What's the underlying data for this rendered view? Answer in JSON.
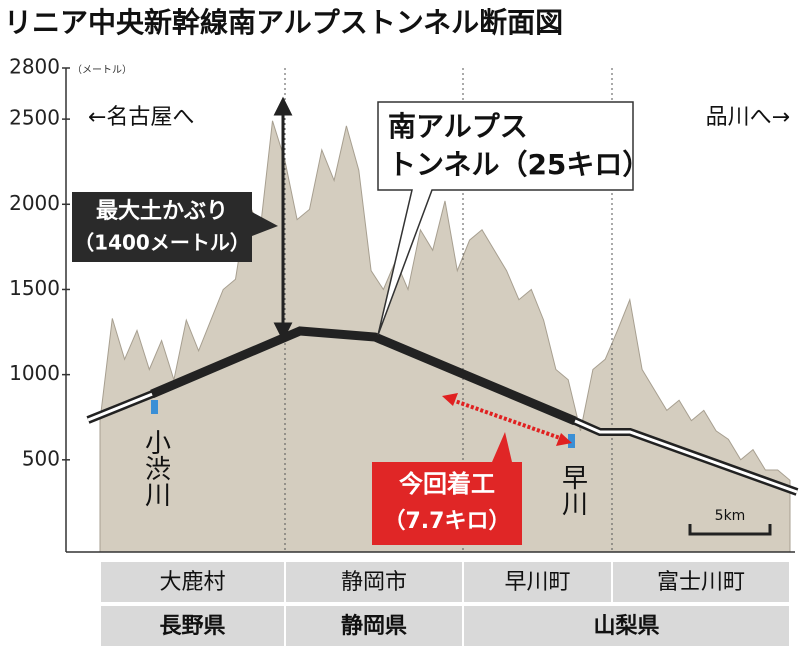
{
  "chart_data": {
    "type": "area",
    "title": "リニア中央新幹線南アルプストンネル断面図",
    "y_unit": "（メートル）",
    "color": "#d4cdbf",
    "ylim": [
      0,
      2800
    ],
    "yticks": [
      500,
      1000,
      1500,
      2000,
      2500,
      2800
    ],
    "categories": [
      null,
      null,
      null,
      null,
      null,
      null,
      null,
      null,
      null,
      null,
      null,
      null,
      null,
      null,
      null,
      null,
      null,
      null,
      null,
      null,
      null,
      null,
      null,
      null,
      null,
      null,
      null,
      null,
      null,
      null,
      null,
      null,
      null,
      null,
      null,
      null,
      null,
      null,
      null,
      null,
      null,
      null,
      null,
      null,
      null,
      null,
      null,
      null,
      null,
      null,
      null,
      null,
      null,
      null,
      null,
      null,
      null
    ],
    "values": [
      730,
      1330,
      1090,
      1260,
      1030,
      1200,
      970,
      1320,
      1140,
      1320,
      1500,
      1560,
      2020,
      1850,
      2490,
      2260,
      1910,
      1970,
      2320,
      2140,
      2460,
      2200,
      1610,
      1500,
      1670,
      1500,
      1850,
      1730,
      2020,
      1610,
      1790,
      1850,
      1730,
      1610,
      1440,
      1500,
      1320,
      1030,
      970,
      670,
      1030,
      1090,
      1260,
      1440,
      1030,
      910,
      790,
      850,
      730,
      790,
      670,
      620,
      500,
      560,
      440,
      440,
      380
    ],
    "annotations": {
      "to_nagoya": "←名古屋へ",
      "to_shinagawa": "品川へ→",
      "tunnel": [
        "南アルプス",
        "トンネル（25キロ）"
      ],
      "cover": [
        "最大土かぶり",
        "（1400メートル）"
      ],
      "start": [
        "今回着工",
        "（7.7キロ）"
      ],
      "river1": "小渋川",
      "river2": "早川",
      "scale": "5km"
    },
    "municipalities": [
      "大鹿村",
      "静岡市",
      "早川町",
      "富士川町"
    ],
    "prefectures": [
      "長野県",
      "静岡県",
      "山梨県"
    ]
  }
}
